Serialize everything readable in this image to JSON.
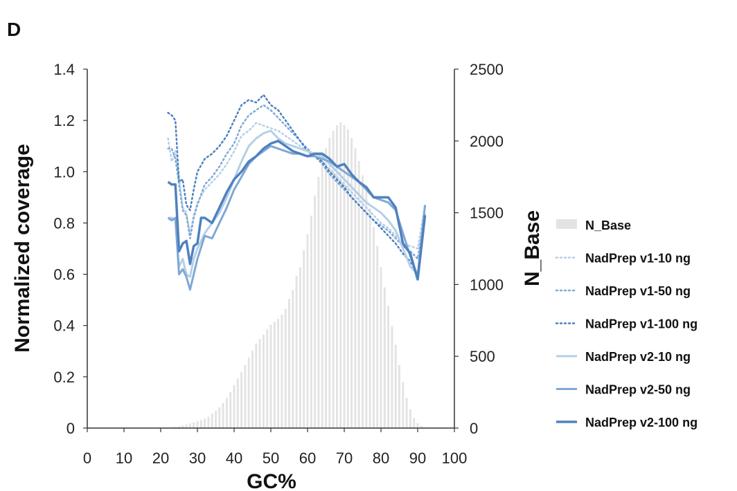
{
  "panel_label": "D",
  "chart_data": {
    "type": "line",
    "xlabel": "GC%",
    "ylabel": "Normalized coverage",
    "y2label": "N_Base",
    "xlim": [
      0,
      100
    ],
    "ylim": [
      0,
      1.4
    ],
    "y2lim": [
      0,
      2500
    ],
    "xticks": [
      0,
      10,
      20,
      30,
      40,
      50,
      60,
      70,
      80,
      90,
      100
    ],
    "yticks": [
      "0",
      "0.2",
      "0.4",
      "0.6",
      "0.8",
      "1.0",
      "1.2",
      "1.4"
    ],
    "y2ticks": [
      "0",
      "500",
      "1000",
      "1500",
      "2000",
      "2500"
    ],
    "grid": false,
    "legend_position": "right",
    "bars": {
      "name": "N_Base",
      "color": "#e3e3e3",
      "x": [
        23,
        24,
        25,
        26,
        27,
        28,
        29,
        30,
        31,
        32,
        33,
        34,
        35,
        36,
        37,
        38,
        39,
        40,
        41,
        42,
        43,
        44,
        45,
        46,
        47,
        48,
        49,
        50,
        51,
        52,
        53,
        54,
        55,
        56,
        57,
        58,
        59,
        60,
        61,
        62,
        63,
        64,
        65,
        66,
        67,
        68,
        69,
        70,
        71,
        72,
        73,
        74,
        75,
        76,
        77,
        78,
        79,
        80,
        81,
        82,
        83,
        84,
        85,
        86,
        87,
        88,
        89,
        90,
        91,
        92
      ],
      "values": [
        5,
        8,
        12,
        18,
        25,
        32,
        40,
        48,
        55,
        65,
        80,
        100,
        120,
        145,
        175,
        210,
        250,
        300,
        345,
        390,
        440,
        490,
        540,
        590,
        620,
        650,
        690,
        720,
        740,
        760,
        790,
        830,
        900,
        960,
        1060,
        1120,
        1240,
        1350,
        1480,
        1620,
        1750,
        1850,
        1950,
        2020,
        2070,
        2110,
        2130,
        2110,
        2080,
        2020,
        1950,
        1860,
        1760,
        1650,
        1530,
        1400,
        1270,
        1120,
        980,
        850,
        710,
        580,
        440,
        320,
        210,
        130,
        70,
        35,
        15,
        5
      ]
    },
    "series": [
      {
        "name": "NadPrep v1-10 ng",
        "color": "#b4cfe8",
        "style": "dotted",
        "width": 2.5,
        "x": [
          22,
          23,
          24,
          25,
          26,
          27,
          28,
          29,
          30,
          32,
          34,
          36,
          38,
          40,
          42,
          44,
          46,
          48,
          50,
          52,
          54,
          56,
          58,
          60,
          62,
          64,
          66,
          68,
          70,
          72,
          74,
          76,
          78,
          80,
          82,
          84,
          86,
          88,
          90,
          92
        ],
        "y": [
          1.13,
          1.04,
          1.08,
          0.98,
          0.86,
          0.84,
          0.76,
          0.83,
          0.88,
          0.93,
          0.96,
          0.99,
          1.03,
          1.08,
          1.14,
          1.16,
          1.19,
          1.18,
          1.17,
          1.16,
          1.14,
          1.12,
          1.1,
          1.08,
          1.06,
          1.04,
          1.01,
          0.98,
          0.95,
          0.92,
          0.89,
          0.86,
          0.83,
          0.8,
          0.78,
          0.75,
          0.72,
          0.71,
          0.7,
          0.87
        ]
      },
      {
        "name": "NadPrep v1-50 ng",
        "color": "#7fa8d4",
        "style": "dotted",
        "width": 2.5,
        "x": [
          22,
          23,
          24,
          25,
          26,
          27,
          28,
          29,
          30,
          32,
          34,
          36,
          38,
          40,
          42,
          44,
          46,
          48,
          50,
          52,
          54,
          56,
          58,
          60,
          62,
          64,
          66,
          68,
          70,
          72,
          74,
          76,
          78,
          80,
          82,
          84,
          86,
          88,
          90,
          92
        ],
        "y": [
          1.09,
          1.09,
          1.05,
          0.95,
          0.85,
          0.83,
          0.74,
          0.82,
          0.87,
          0.95,
          0.98,
          1.02,
          1.07,
          1.11,
          1.18,
          1.22,
          1.24,
          1.26,
          1.24,
          1.21,
          1.18,
          1.15,
          1.12,
          1.09,
          1.06,
          1.03,
          0.99,
          0.96,
          0.93,
          0.9,
          0.87,
          0.84,
          0.81,
          0.79,
          0.77,
          0.74,
          0.71,
          0.69,
          0.66,
          0.84
        ]
      },
      {
        "name": "NadPrep v1-100 ng",
        "color": "#4a7fbf",
        "style": "dotted",
        "width": 2.5,
        "x": [
          22,
          23,
          24,
          25,
          26,
          27,
          28,
          29,
          30,
          32,
          34,
          36,
          38,
          40,
          42,
          44,
          46,
          48,
          50,
          52,
          54,
          56,
          58,
          60,
          62,
          64,
          66,
          68,
          70,
          72,
          74,
          76,
          78,
          80,
          82,
          84,
          86,
          88,
          90,
          92
        ],
        "y": [
          1.23,
          1.22,
          1.2,
          0.96,
          0.97,
          0.87,
          0.85,
          0.93,
          1.0,
          1.05,
          1.07,
          1.1,
          1.14,
          1.2,
          1.26,
          1.28,
          1.27,
          1.3,
          1.26,
          1.24,
          1.2,
          1.16,
          1.12,
          1.08,
          1.06,
          1.04,
          1.0,
          0.97,
          0.94,
          0.9,
          0.87,
          0.84,
          0.81,
          0.78,
          0.75,
          0.72,
          0.68,
          0.65,
          0.6,
          0.82
        ]
      },
      {
        "name": "NadPrep v2-10 ng",
        "color": "#b4cfe8",
        "style": "solid",
        "width": 3,
        "x": [
          22,
          23,
          24,
          25,
          26,
          27,
          28,
          29,
          30,
          32,
          34,
          36,
          38,
          40,
          42,
          44,
          46,
          48,
          50,
          52,
          54,
          56,
          58,
          60,
          62,
          64,
          66,
          68,
          70,
          72,
          74,
          76,
          78,
          80,
          82,
          84,
          86,
          88,
          90,
          92
        ],
        "y": [
          0.82,
          0.82,
          0.81,
          0.63,
          0.66,
          0.6,
          0.59,
          0.66,
          0.7,
          0.76,
          0.8,
          0.84,
          0.9,
          0.97,
          1.04,
          1.1,
          1.13,
          1.15,
          1.16,
          1.13,
          1.11,
          1.1,
          1.09,
          1.08,
          1.07,
          1.06,
          1.03,
          1.0,
          0.97,
          0.94,
          0.91,
          0.88,
          0.86,
          0.84,
          0.81,
          0.77,
          0.7,
          0.63,
          0.6,
          0.87
        ]
      },
      {
        "name": "NadPrep v2-50 ng",
        "color": "#7fa8d4",
        "style": "solid",
        "width": 3,
        "x": [
          22,
          23,
          24,
          25,
          26,
          27,
          28,
          29,
          30,
          32,
          34,
          36,
          38,
          40,
          42,
          44,
          46,
          48,
          50,
          52,
          54,
          56,
          58,
          60,
          62,
          64,
          66,
          68,
          70,
          72,
          74,
          76,
          78,
          80,
          82,
          84,
          86,
          88,
          90,
          92
        ],
        "y": [
          0.82,
          0.81,
          0.82,
          0.6,
          0.62,
          0.59,
          0.54,
          0.6,
          0.66,
          0.75,
          0.74,
          0.8,
          0.86,
          0.93,
          0.98,
          1.03,
          1.06,
          1.08,
          1.1,
          1.09,
          1.08,
          1.07,
          1.07,
          1.06,
          1.06,
          1.05,
          1.04,
          1.02,
          1.0,
          0.98,
          0.96,
          0.93,
          0.9,
          0.89,
          0.88,
          0.85,
          0.76,
          0.67,
          0.59,
          0.87
        ]
      },
      {
        "name": "NadPrep v2-100 ng",
        "color": "#4f81bd",
        "style": "solid",
        "width": 3.5,
        "x": [
          22,
          23,
          24,
          25,
          26,
          27,
          28,
          29,
          30,
          31,
          32,
          34,
          36,
          38,
          40,
          42,
          44,
          46,
          48,
          50,
          52,
          54,
          56,
          58,
          60,
          62,
          64,
          66,
          68,
          70,
          72,
          74,
          76,
          78,
          80,
          82,
          84,
          86,
          88,
          90,
          92
        ],
        "y": [
          0.96,
          0.95,
          0.95,
          0.69,
          0.72,
          0.73,
          0.64,
          0.71,
          0.72,
          0.82,
          0.82,
          0.8,
          0.86,
          0.92,
          0.97,
          1.0,
          1.04,
          1.06,
          1.09,
          1.11,
          1.12,
          1.1,
          1.08,
          1.07,
          1.06,
          1.07,
          1.07,
          1.05,
          1.02,
          1.03,
          0.99,
          0.96,
          0.94,
          0.9,
          0.9,
          0.9,
          0.86,
          0.72,
          0.68,
          0.58,
          0.83
        ]
      }
    ]
  }
}
